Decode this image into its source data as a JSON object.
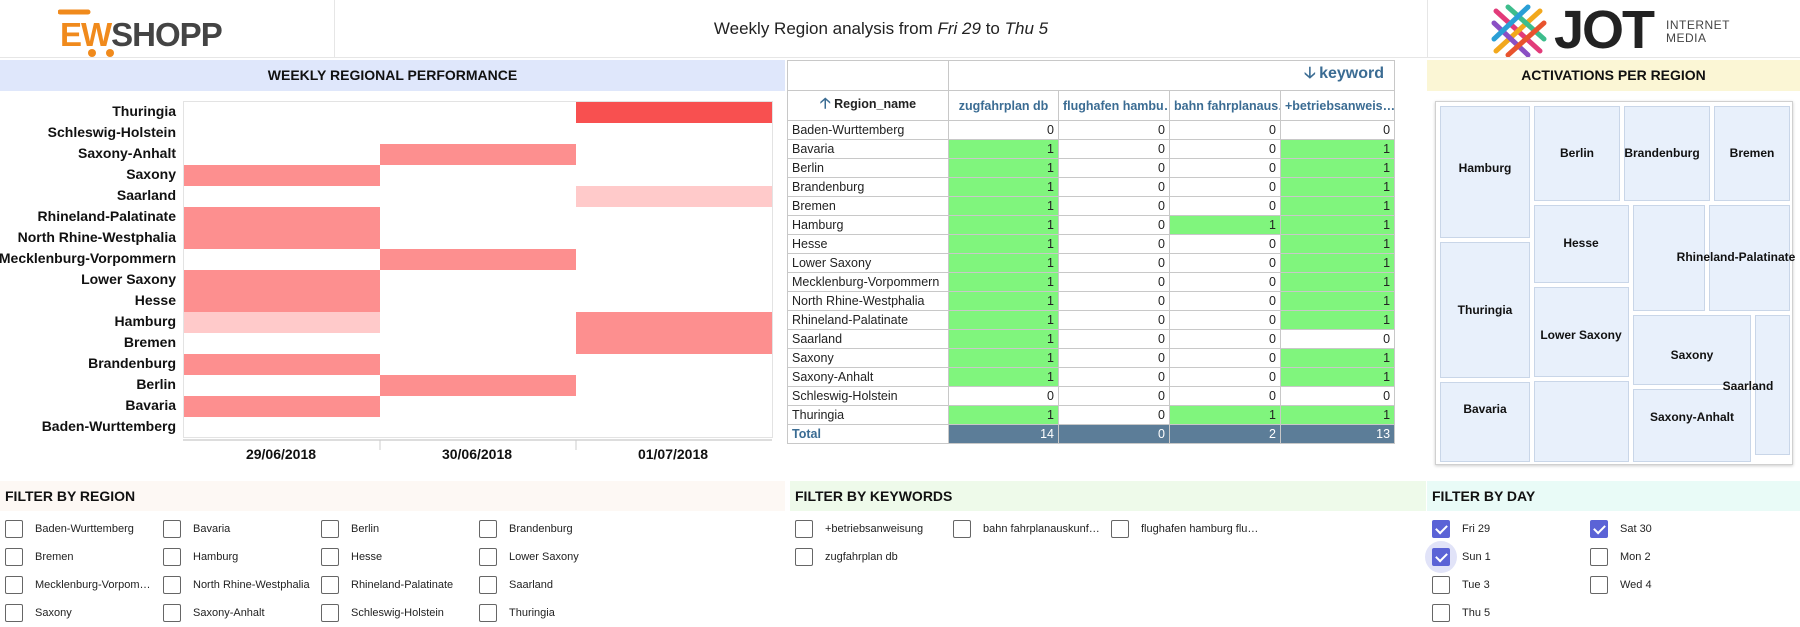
{
  "header": {
    "left_logo": {
      "part1": "E",
      "part2": "W",
      "part3": "SHOPP"
    },
    "title_prefix": "Weekly Region analysis from ",
    "title_from": "Fri 29",
    "title_mid": " to ",
    "title_to": "Thu 5",
    "right_logo": {
      "word": "JOT",
      "line1": "INTERNET",
      "line2": "MEDIA"
    }
  },
  "heatmap": {
    "title": "WEEKLY REGIONAL PERFORMANCE",
    "regions": [
      "Thuringia",
      "Schleswig-Holstein",
      "Saxony-Anhalt",
      "Saxony",
      "Saarland",
      "Rhineland-Palatinate",
      "North Rhine-Westphalia",
      "Mecklenburg-Vorpommern",
      "Lower Saxony",
      "Hesse",
      "Hamburg",
      "Bremen",
      "Brandenburg",
      "Berlin",
      "Bavaria",
      "Baden-Wurttemberg"
    ],
    "dates": [
      "29/06/2018",
      "30/06/2018",
      "01/07/2018"
    ],
    "colors": {
      "high": "#f85050",
      "mid": "#fd8f8f",
      "low": "#ffcaca"
    }
  },
  "chart_data": {
    "type": "heatmap",
    "title": "WEEKLY REGIONAL PERFORMANCE",
    "x": [
      "29/06/2018",
      "30/06/2018",
      "01/07/2018"
    ],
    "y": [
      "Thuringia",
      "Schleswig-Holstein",
      "Saxony-Anhalt",
      "Saxony",
      "Saarland",
      "Rhineland-Palatinate",
      "North Rhine-Westphalia",
      "Mecklenburg-Vorpommern",
      "Lower Saxony",
      "Hesse",
      "Hamburg",
      "Bremen",
      "Brandenburg",
      "Berlin",
      "Bavaria",
      "Baden-Wurttemberg"
    ],
    "values": [
      [
        0,
        0,
        3
      ],
      [
        0,
        0,
        0
      ],
      [
        0,
        2,
        0
      ],
      [
        2,
        0,
        0
      ],
      [
        0,
        0,
        1
      ],
      [
        2,
        0,
        0
      ],
      [
        2,
        0,
        0
      ],
      [
        0,
        2,
        0
      ],
      [
        2,
        0,
        0
      ],
      [
        2,
        0,
        0
      ],
      [
        1,
        0,
        2
      ],
      [
        0,
        0,
        2
      ],
      [
        2,
        0,
        0
      ],
      [
        0,
        2,
        0
      ],
      [
        2,
        0,
        0
      ],
      [
        0,
        0,
        0
      ]
    ]
  },
  "pivot": {
    "col_header": "keyword",
    "row_header": "Region_name",
    "columns": [
      "zugfahrplan db",
      "flughafen hambu…",
      "bahn fahrplanaus…",
      "+betriebsanweis…"
    ],
    "rows": [
      {
        "name": "Baden-Wurttemberg",
        "v": [
          0,
          0,
          0,
          0
        ]
      },
      {
        "name": "Bavaria",
        "v": [
          1,
          0,
          0,
          1
        ]
      },
      {
        "name": "Berlin",
        "v": [
          1,
          0,
          0,
          1
        ]
      },
      {
        "name": "Brandenburg",
        "v": [
          1,
          0,
          0,
          1
        ]
      },
      {
        "name": "Bremen",
        "v": [
          1,
          0,
          0,
          1
        ]
      },
      {
        "name": "Hamburg",
        "v": [
          1,
          0,
          1,
          1
        ]
      },
      {
        "name": "Hesse",
        "v": [
          1,
          0,
          0,
          1
        ]
      },
      {
        "name": "Lower Saxony",
        "v": [
          1,
          0,
          0,
          1
        ]
      },
      {
        "name": "Mecklenburg-Vorpommern",
        "v": [
          1,
          0,
          0,
          1
        ]
      },
      {
        "name": "North Rhine-Westphalia",
        "v": [
          1,
          0,
          0,
          1
        ]
      },
      {
        "name": "Rhineland-Palatinate",
        "v": [
          1,
          0,
          0,
          1
        ]
      },
      {
        "name": "Saarland",
        "v": [
          1,
          0,
          0,
          0
        ]
      },
      {
        "name": "Saxony",
        "v": [
          1,
          0,
          0,
          1
        ]
      },
      {
        "name": "Saxony-Anhalt",
        "v": [
          1,
          0,
          0,
          1
        ]
      },
      {
        "name": "Schleswig-Holstein",
        "v": [
          0,
          0,
          0,
          0
        ]
      },
      {
        "name": "Thuringia",
        "v": [
          1,
          0,
          1,
          1
        ]
      }
    ],
    "total_label": "Total",
    "totals": [
      14,
      0,
      2,
      13
    ]
  },
  "treemap": {
    "title": "ACTIVATIONS PER REGION",
    "labels": [
      "Hamburg",
      "Berlin",
      "Brandenburg",
      "Bremen",
      "Hesse",
      "Rhineland-Palatinate",
      "Thuringia",
      "Lower Saxony",
      "Saxony",
      "Saarland",
      "Bavaria",
      "Saxony-Anhalt"
    ]
  },
  "filter_region": {
    "title": "FILTER BY REGION",
    "items": [
      "Baden-Wurttemberg",
      "Bavaria",
      "Berlin",
      "Brandenburg",
      "Bremen",
      "Hamburg",
      "Hesse",
      "Lower Saxony",
      "Mecklenburg-Vorpom…",
      "North Rhine-Westphalia",
      "Rhineland-Palatinate",
      "Saarland",
      "Saxony",
      "Saxony-Anhalt",
      "Schleswig-Holstein",
      "Thuringia"
    ],
    "checked": [
      false,
      false,
      false,
      false,
      false,
      false,
      false,
      false,
      false,
      false,
      false,
      false,
      false,
      false,
      false,
      false
    ]
  },
  "filter_keywords": {
    "title": "FILTER BY KEYWORDS",
    "items": [
      "+betriebsanweisung",
      "bahn fahrplanauskunf…",
      "flughafen hamburg flu…",
      "zugfahrplan db"
    ],
    "checked": [
      false,
      false,
      false,
      false
    ]
  },
  "filter_day": {
    "title": "FILTER BY DAY",
    "items": [
      "Fri 29",
      "Sat 30",
      "Sun 1",
      "Mon 2",
      "Tue 3",
      "Wed 4",
      "Thu 5"
    ],
    "checked": [
      true,
      true,
      true,
      false,
      false,
      false,
      false
    ]
  }
}
